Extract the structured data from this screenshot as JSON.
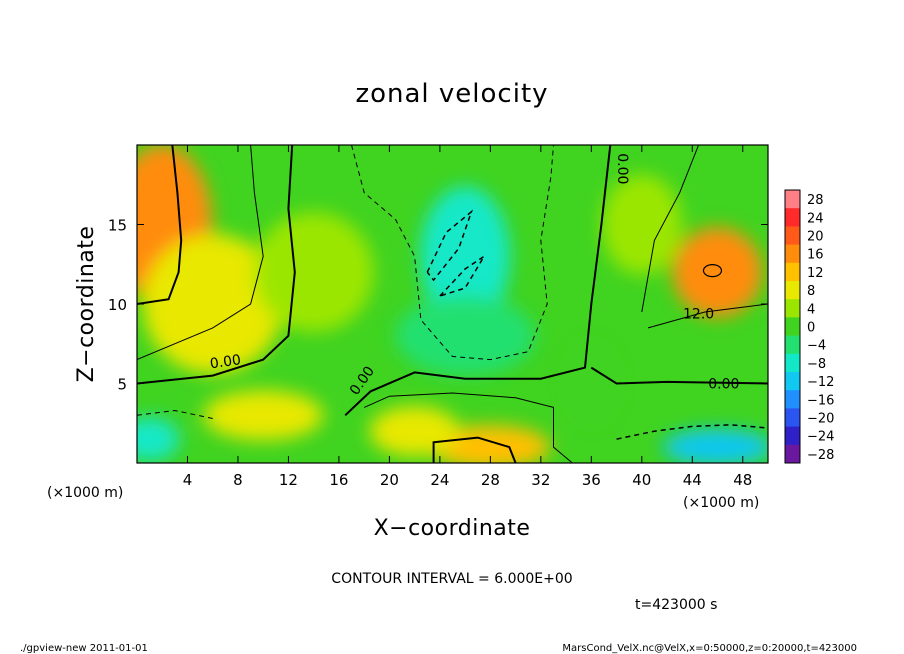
{
  "chart_data": {
    "type": "heatmap",
    "title": "zonal velocity",
    "xlabel": "X−coordinate",
    "ylabel": "Z−coordinate",
    "x_unit": "(×1000 m)",
    "y_unit": "(×1000 m)",
    "xlim": [
      0,
      50
    ],
    "ylim": [
      0,
      20
    ],
    "x_ticks": [
      4,
      8,
      12,
      16,
      20,
      24,
      28,
      32,
      36,
      40,
      44,
      48
    ],
    "y_ticks": [
      5,
      10,
      15
    ],
    "x_tick_labels": [
      "4",
      "8",
      "12",
      "16",
      "20",
      "24",
      "28",
      "32",
      "36",
      "40",
      "44",
      "48"
    ],
    "y_tick_labels": [
      "5",
      "10",
      "15"
    ],
    "colorbar": {
      "levels": [
        28,
        24,
        20,
        16,
        12,
        8,
        4,
        0,
        -4,
        -8,
        -12,
        -16,
        -20,
        -24,
        -28
      ],
      "labels": [
        "28",
        "24",
        "20",
        "16",
        "12",
        "8",
        "4",
        "0",
        "−4",
        "−8",
        "−12",
        "−16",
        "−20",
        "−24",
        "−28"
      ],
      "colors": [
        "#ff7f86",
        "#ff2a2a",
        "#ff5a1a",
        "#ff8c0a",
        "#ffc000",
        "#e8e800",
        "#9be600",
        "#40d320",
        "#22e070",
        "#12e8c8",
        "#10c8f0",
        "#2090ff",
        "#2b55f0",
        "#3020c8",
        "#6a18a0"
      ]
    },
    "contour_interval": "CONTOUR INTERVAL = 6.000E+00",
    "contour_labels": [
      "0.00",
      "0.00",
      "0.00",
      "12.0",
      "0.00"
    ],
    "field_samples": [
      {
        "x": 2,
        "z": 15,
        "value": 14
      },
      {
        "x": 6,
        "z": 10,
        "value": 8
      },
      {
        "x": 14,
        "z": 12,
        "value": 2
      },
      {
        "x": 26,
        "z": 13,
        "value": -10
      },
      {
        "x": 26,
        "z": 8,
        "value": -6
      },
      {
        "x": 28,
        "z": 1,
        "value": 12
      },
      {
        "x": 46,
        "z": 12,
        "value": 16
      },
      {
        "x": 40,
        "z": 15,
        "value": 4
      },
      {
        "x": 46,
        "z": 1,
        "value": -14
      },
      {
        "x": 1,
        "z": 1.5,
        "value": -10
      },
      {
        "x": 36,
        "z": 5,
        "value": 0
      },
      {
        "x": 10,
        "z": 3,
        "value": 6
      },
      {
        "x": 22,
        "z": 2,
        "value": 8
      }
    ]
  },
  "time_label": "t=423000 s",
  "footer_left": "./gpview-new   2011-01-01",
  "footer_right": "MarsCond_VelX.nc@VelX,x=0:50000,z=0:20000,t=423000",
  "colors": {
    "frame": "#000000",
    "background": "#ffffff"
  }
}
